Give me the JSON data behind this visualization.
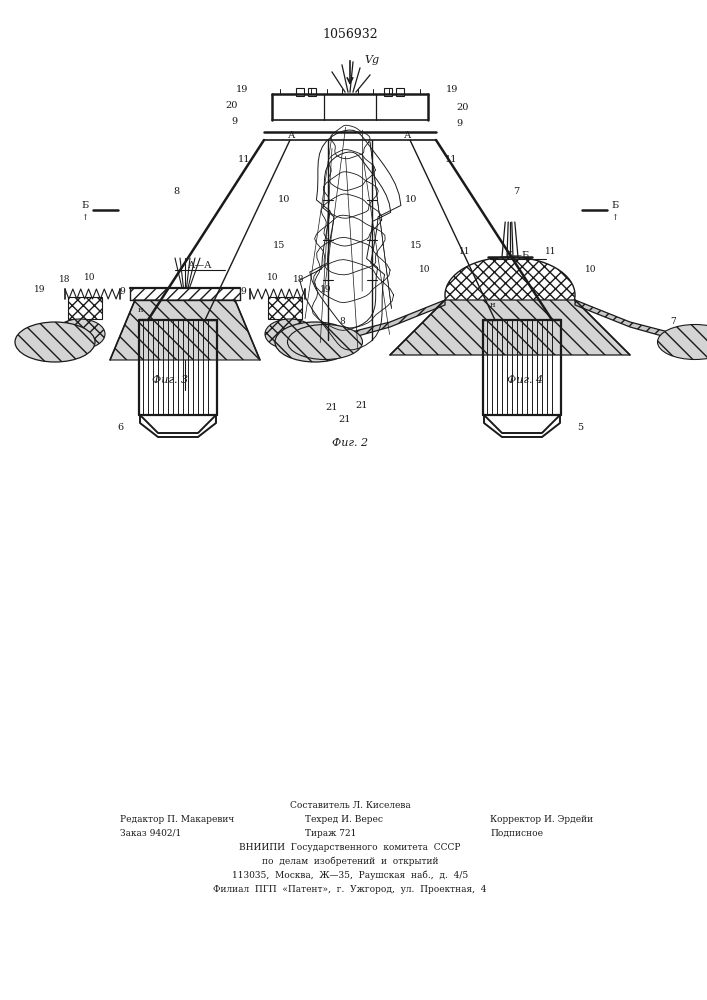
{
  "title": "1056932",
  "fig2_caption": "Фиг. 2",
  "fig3_caption": "Фиг. 3",
  "fig4_caption": "Фиг. 4",
  "bg_color": "#ffffff",
  "line_color": "#1a1a1a"
}
